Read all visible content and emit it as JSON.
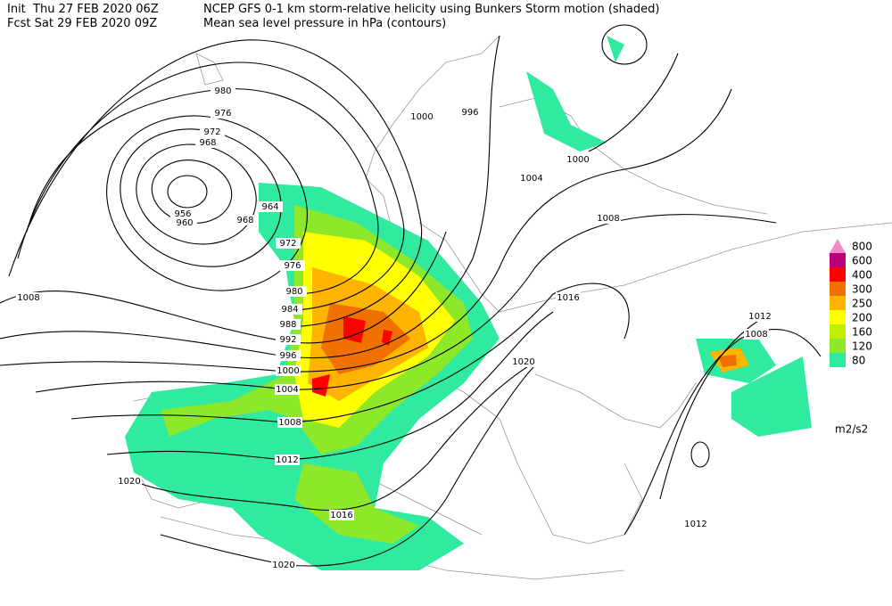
{
  "header": {
    "init": "Init  Thu 27 FEB 2020 06Z",
    "forecast": "Fcst Sat 29 FEB 2020 09Z",
    "title": "NCEP GFS 0-1 km storm-relative helicity using Bunkers Storm motion (shaded)",
    "subtitle": "Mean sea level pressure in hPa (contours)"
  },
  "legend": {
    "levels": [
      {
        "value": 800,
        "color": "#f088c8"
      },
      {
        "value": 600,
        "color": "#b8007a"
      },
      {
        "value": 400,
        "color": "#ff0000"
      },
      {
        "value": 300,
        "color": "#f07000"
      },
      {
        "value": 250,
        "color": "#ffb400"
      },
      {
        "value": 200,
        "color": "#ffff00"
      },
      {
        "value": 160,
        "color": "#c0f000"
      },
      {
        "value": 120,
        "color": "#8ce828"
      },
      {
        "value": 80,
        "color": "#30eaa0"
      }
    ],
    "unit": "m2/s2"
  },
  "contour_labels": [
    980,
    976,
    972,
    968,
    956,
    960,
    964,
    968,
    972,
    976,
    980,
    984,
    988,
    992,
    996,
    1000,
    1004,
    1008,
    1012,
    1016,
    1020,
    1020,
    1008,
    1000,
    996,
    1000,
    1004,
    1008,
    1016,
    1020,
    1012,
    1008,
    1012
  ]
}
